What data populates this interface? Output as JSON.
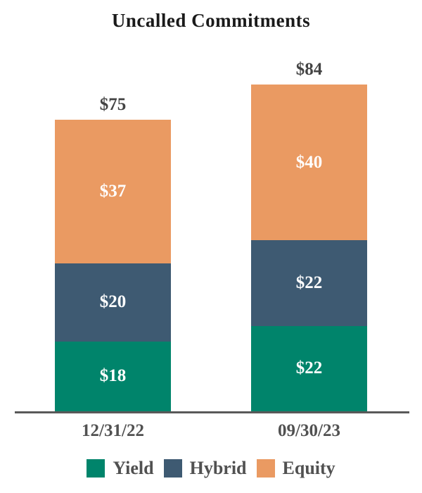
{
  "chart_data": {
    "type": "bar",
    "stacked": true,
    "title": "Uncalled Commitments",
    "categories": [
      "12/31/22",
      "09/30/23"
    ],
    "series": [
      {
        "name": "Yield",
        "color": "#00846B",
        "values": [
          18,
          22
        ]
      },
      {
        "name": "Hybrid",
        "color": "#3E5A72",
        "values": [
          20,
          22
        ]
      },
      {
        "name": "Equity",
        "color": "#EA9A62",
        "values": [
          37,
          40
        ]
      }
    ],
    "totals": [
      75,
      84
    ],
    "total_labels": [
      "$75",
      "$84"
    ],
    "segment_labels": [
      [
        "$18",
        "$20",
        "$37"
      ],
      [
        "$22",
        "$22",
        "$40"
      ]
    ],
    "value_prefix": "$",
    "xlabel": "",
    "ylabel": "",
    "ylim": [
      0,
      90
    ],
    "grid": false,
    "legend_position": "bottom",
    "axis_color": "#595959"
  }
}
